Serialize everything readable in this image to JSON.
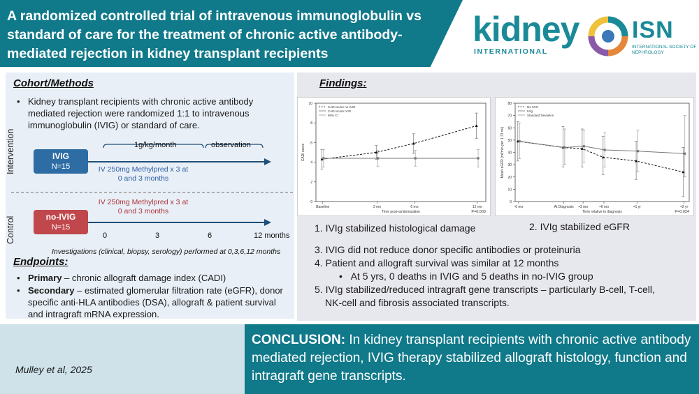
{
  "header": {
    "title": "A randomized controlled trial of intravenous immunoglobulin vs standard of care for the treatment of chronic active antibody-mediated rejection in kidney transplant recipients",
    "journal_logo_word": "kidney",
    "journal_logo_sub": "INTERNATIONAL",
    "society_logo_word": "ISN",
    "society_logo_sub": "International Society of Nephrology"
  },
  "cohort": {
    "heading": "Cohort/Methods",
    "bullet": "Kidney transplant recipients with chronic active antibody mediated rejection were randomized 1:1 to intravenous immunoglobulin (IVIG) or standard of care.",
    "bullet_symbol": "•",
    "intervention_label": "Intervention",
    "control_label": "Control",
    "ivig_box": {
      "name": "IVIG",
      "n": "N=15"
    },
    "noivig_box": {
      "name": "no-IVIG",
      "n": "N=15"
    },
    "dose_label": "1g/kg/month",
    "observation_label": "observation",
    "ivig_methylpred": "IV 250mg Methylpred x 3  at 0 and 3 months",
    "control_methylpred": "IV 250mg Methylpred x 3  at 0 and 3 months",
    "timepoints": [
      "0",
      "3",
      "6",
      "12 months"
    ],
    "investigations": "Investigations (clinical, biopsy, serology) performed at 0,3,6,12 months",
    "colors": {
      "ivig_box": "#2e6da4",
      "noivig_box": "#c0484c",
      "arrow": "#1f4e79"
    }
  },
  "endpoints": {
    "heading": "Endpoints:",
    "primary_lead": "Primary",
    "primary_text": " – chronic allograft damage index (CADI)",
    "secondary_lead": "Secondary",
    "secondary_text": " – estimated glomerular filtration rate (eGFR), donor specific anti-HLA antibodies (DSA), allograft & patient survival and intragraft mRNA expression."
  },
  "findings": {
    "heading": "Findings:",
    "item1": "1. IVIg stabilized histological damage",
    "item2": "2. IVIg stabilized eGFR",
    "item3": "3. IVIG did not reduce donor specific antibodies or proteinuria",
    "item4": "4. Patient and allograft survival was similar at 12 months",
    "item4_sub": "At 5 yrs, 0 deaths in IVIG and 5 deaths in no-IVIG group",
    "item5_line1": "5. IVIg stabilized/reduced intragraft gene transcripts – particularly B-cell, T-cell,",
    "item5_line2": "NK-cell and fibrosis associated transcripts."
  },
  "chart_data": [
    {
      "type": "line",
      "title": "",
      "xlabel": "Time post-randomization",
      "ylabel": "CADI score",
      "x": [
        "Baseline",
        "3 mo",
        "6 mo",
        "12 mo"
      ],
      "ylim": [
        0,
        10
      ],
      "yticks": [
        "0",
        "2",
        "4",
        "6",
        "8",
        "10"
      ],
      "legend": [
        "CADI score no IVIG",
        "CADI score IVIG",
        "95% CI"
      ],
      "legend_position": "top-left",
      "series": [
        {
          "name": "CADI score no IVIG",
          "values": [
            4.3,
            5.0,
            5.9,
            7.7
          ],
          "ci_low": [
            3.3,
            4.3,
            4.9,
            6.4
          ],
          "ci_high": [
            5.3,
            5.7,
            6.9,
            9.0
          ]
        },
        {
          "name": "CADI score IVIG",
          "values": [
            4.4,
            4.4,
            4.4,
            4.4
          ],
          "ci_low": [
            3.5,
            3.6,
            3.6,
            3.5
          ],
          "ci_high": [
            5.3,
            5.2,
            5.2,
            5.3
          ]
        }
      ],
      "p_value": "P=0.003"
    },
    {
      "type": "line",
      "title": "",
      "xlabel": "Time relative to diagnosis",
      "ylabel": "Mean eGFR (ml/min per 1.73 m²)",
      "x": [
        "-6 mo",
        "At Diagnosis",
        "+3 mo",
        "+6 mo",
        "+1 yr",
        "+2 yr"
      ],
      "ylim": [
        0,
        80
      ],
      "yticks": [
        "0",
        "10",
        "20",
        "30",
        "40",
        "50",
        "60",
        "70",
        "80"
      ],
      "legend": [
        "No IVIG",
        "IVIg",
        "Standard Deviation"
      ],
      "legend_position": "top-left",
      "series": [
        {
          "name": "No IVIG",
          "values": [
            49,
            44,
            43,
            36,
            33,
            24
          ],
          "sd_low": [
            33,
            28,
            28,
            22,
            18,
            4
          ],
          "sd_high": [
            65,
            61,
            59,
            53,
            49,
            44
          ]
        },
        {
          "name": "IVIg",
          "values": [
            49,
            44,
            45,
            42,
            41,
            39
          ],
          "sd_low": [
            35,
            30,
            32,
            28,
            24,
            20
          ],
          "sd_high": [
            64,
            59,
            58,
            56,
            58,
            70
          ]
        }
      ],
      "p_value": "P=0.024"
    }
  ],
  "citation": "Mulley et al, 2025",
  "conclusion": {
    "lead": "CONCLUSION:",
    "text": " In kidney transplant recipients with chronic active antibody mediated rejection, IVIG therapy stabilized allograft histology, function and intragraft gene transcripts."
  }
}
